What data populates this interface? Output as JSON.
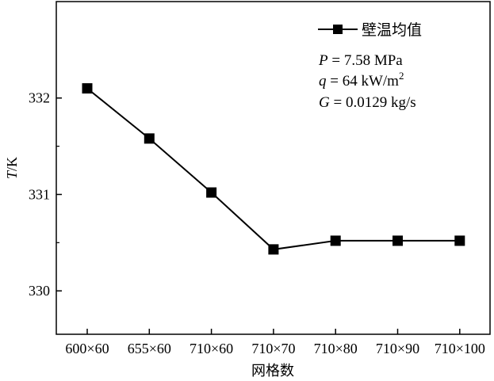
{
  "chart_data": {
    "type": "line",
    "xlabel": "网格数",
    "ylabel": {
      "italic": "T",
      "rest": "/K"
    },
    "ylim": [
      329.55,
      333.0
    ],
    "yticks": [
      "330",
      "331",
      "332"
    ],
    "categories": [
      "600×60",
      "655×60",
      "710×60",
      "710×70",
      "710×80",
      "710×90",
      "710×100"
    ],
    "series": [
      {
        "name": "壁温均值",
        "values": [
          332.1,
          331.58,
          331.02,
          330.43,
          330.52,
          330.52,
          330.52
        ],
        "color": "#000000",
        "marker": "square"
      }
    ],
    "legend_position": "top-right",
    "annotations": [
      {
        "var": "P",
        "text": " = 7.58 MPa"
      },
      {
        "var": "q",
        "text": " = 64 kW/m",
        "sup": "2"
      },
      {
        "var": "G",
        "text": " = 0.0129 kg/s"
      }
    ],
    "grid": false
  }
}
